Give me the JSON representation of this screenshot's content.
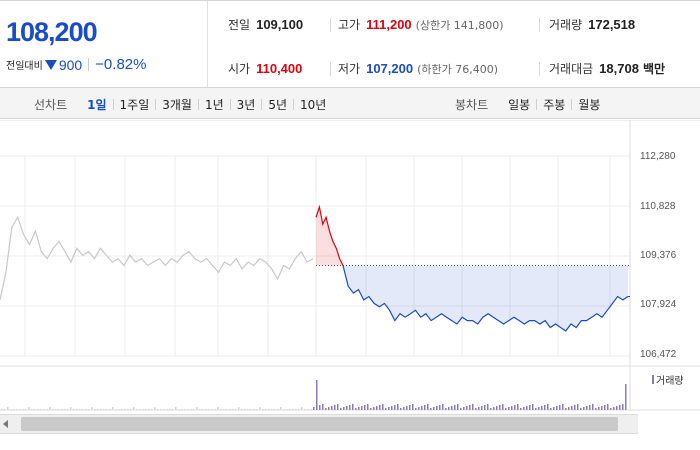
{
  "quote": {
    "price": "108,200",
    "change_label": "전일대비",
    "change_icon": "down-triangle-icon",
    "change_value": "900",
    "change_percent": "−0.82%",
    "prev_close_label": "전일",
    "prev_close": "109,100",
    "high_label": "고가",
    "high": "111,200",
    "upper_limit": "(상한가 141,800)",
    "volume_label": "거래량",
    "volume": "172,518",
    "open_label": "시가",
    "open": "110,400",
    "low_label": "저가",
    "low": "107,200",
    "lower_limit": "(하한가 76,400)",
    "amount_label": "거래대금",
    "amount": "18,708",
    "amount_unit": "백만",
    "colors": {
      "up": "#e0000f",
      "down": "#1a4cc7"
    }
  },
  "tabs": {
    "line_label": "선차트",
    "line_periods": [
      "1일",
      "1주일",
      "3개월",
      "1년",
      "3년",
      "5년",
      "10년"
    ],
    "line_active": "1일",
    "candle_label": "봉차트",
    "candle_periods": [
      "일봉",
      "주봉",
      "월봉"
    ]
  },
  "chart_data": {
    "type": "line",
    "y_ticks": [
      "112,280",
      "110,828",
      "109,376",
      "107,924",
      "106,472"
    ],
    "ylim": [
      106472,
      112280
    ],
    "reference_price": 109100,
    "volume_legend": "거래량",
    "series": [
      {
        "values": [
          108100,
          108900,
          110200,
          110500,
          110000,
          109700,
          110100,
          109500,
          109300,
          109600,
          109800,
          109500,
          109200,
          109600,
          109400,
          109500,
          109300,
          109600,
          109400,
          109200,
          109300,
          109100,
          109400,
          109200,
          109300,
          109100,
          109200,
          109300,
          109100,
          109300,
          109200,
          109400,
          109500,
          109300,
          109200,
          109300,
          109100,
          108900,
          109200,
          109100,
          109300,
          109000,
          109200,
          109100,
          109300,
          109200,
          109000,
          108700,
          109100,
          109000,
          109300,
          109500,
          109200,
          109300
        ]
      },
      {
        "values": [
          110500,
          110800,
          110300,
          110500,
          110100,
          109800,
          109600,
          109300,
          109100
        ]
      },
      {
        "values": [
          109100,
          108500,
          108300,
          108400,
          108100,
          108200,
          108000,
          107900,
          108000,
          107800,
          107500,
          107700,
          107600,
          107700,
          107800,
          107600,
          107700,
          107500,
          107600,
          107700,
          107600,
          107500,
          107400,
          107600,
          107500,
          107500,
          107400,
          107600,
          107700,
          107600,
          107500,
          107400,
          107500,
          107600,
          107500,
          107400,
          107500,
          107500,
          107400,
          107500,
          107300,
          107400,
          107300,
          107200,
          107400,
          107300,
          107500,
          107500,
          107600,
          107700,
          107600,
          107800,
          108000,
          108200,
          108100,
          108200
        ]
      }
    ]
  }
}
